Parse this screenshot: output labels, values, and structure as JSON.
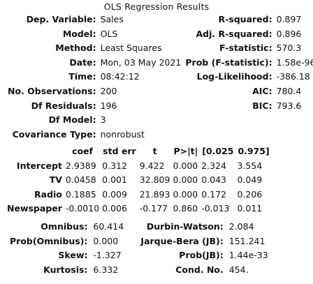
{
  "caption": "OLS Regression Results",
  "summary": {
    "rows": [
      {
        "l1": "Dep. Variable:",
        "v1": "Sales",
        "l2": "R-squared:",
        "v2": "0.897"
      },
      {
        "l1": "Model:",
        "v1": "OLS",
        "l2": "Adj. R-squared:",
        "v2": "0.896"
      },
      {
        "l1": "Method:",
        "v1": "Least Squares",
        "l2": "F-statistic:",
        "v2": "570.3"
      },
      {
        "l1": "Date:",
        "v1": "Mon, 03 May 2021",
        "l2": "Prob (F-statistic):",
        "v2": "1.58e-96"
      },
      {
        "l1": "Time:",
        "v1": "08:42:12",
        "l2": "Log-Likelihood:",
        "v2": "-386.18"
      },
      {
        "l1": "No. Observations:",
        "v1": "200",
        "l2": "AIC:",
        "v2": "780.4"
      },
      {
        "l1": "Df Residuals:",
        "v1": "196",
        "l2": "BIC:",
        "v2": "793.6"
      },
      {
        "l1": "Df Model:",
        "v1": "3",
        "l2": "",
        "v2": ""
      },
      {
        "l1": "Covariance Type:",
        "v1": "nonrobust",
        "l2": "",
        "v2": ""
      }
    ]
  },
  "coefficients": {
    "headers": [
      "",
      "coef",
      "std err",
      "t",
      "P>|t|",
      "[0.025",
      "0.975]"
    ],
    "rows": [
      [
        "Intercept",
        "2.9389",
        "0.312",
        "9.422",
        "0.000",
        "2.324",
        "3.554"
      ],
      [
        "TV",
        "0.0458",
        "0.001",
        "32.809",
        "0.000",
        "0.043",
        "0.049"
      ],
      [
        "Radio",
        "0.1885",
        "0.009",
        "21.893",
        "0.000",
        "0.172",
        "0.206"
      ],
      [
        "Newspaper",
        "-0.0010",
        "0.006",
        "-0.177",
        "0.860",
        "-0.013",
        "0.011"
      ]
    ]
  },
  "diagnostics": {
    "rows": [
      {
        "l1": "Omnibus:",
        "v1": "60.414",
        "l2": "Durbin-Watson:",
        "v2": "2.084"
      },
      {
        "l1": "Prob(Omnibus):",
        "v1": "0.000",
        "l2": "Jarque-Bera (JB):",
        "v2": "151.241"
      },
      {
        "l1": "Skew:",
        "v1": "-1.327",
        "l2": "Prob(JB):",
        "v2": "1.44e-33"
      },
      {
        "l1": "Kurtosis:",
        "v1": "6.332",
        "l2": "Cond. No.",
        "v2": "454."
      }
    ]
  }
}
